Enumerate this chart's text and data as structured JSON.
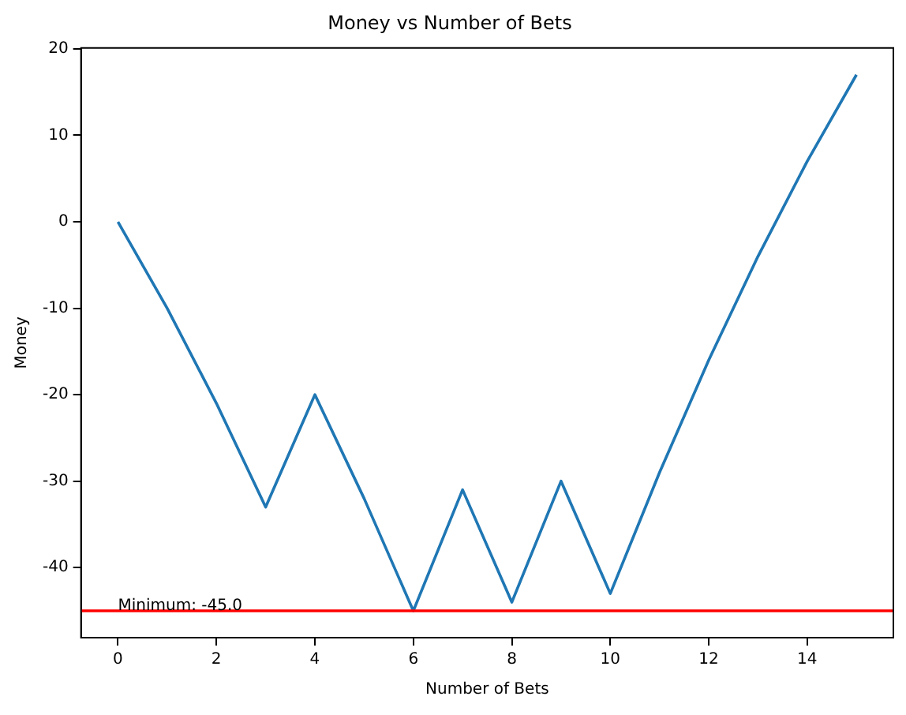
{
  "chart_data": {
    "type": "line",
    "title": "Money vs Number of Bets",
    "xlabel": "Number of Bets",
    "ylabel": "Money",
    "x": [
      0,
      1,
      2,
      3,
      4,
      5,
      6,
      7,
      8,
      9,
      10,
      11,
      12,
      13,
      14,
      15
    ],
    "series": [
      {
        "color": "#1f77b4",
        "values": [
          0,
          -10,
          -21,
          -33,
          -20,
          -32,
          -45,
          -31,
          -44,
          -30,
          -43,
          -29,
          -16,
          -4,
          7,
          17
        ]
      }
    ],
    "xlim": [
      -0.75,
      15.75
    ],
    "xticks": [
      0,
      2,
      4,
      6,
      8,
      10,
      12,
      14
    ],
    "ylim": [
      -48.1,
      20.1
    ],
    "yticks": [
      -40,
      -30,
      -20,
      -10,
      0,
      10,
      20
    ],
    "ref_lines": [
      {
        "axis": "y",
        "value": -45,
        "label": "Minimum: -45.0",
        "color": "#ff0000"
      }
    ],
    "grid": false,
    "legend": false,
    "marker": "none",
    "line_style": "solid"
  }
}
